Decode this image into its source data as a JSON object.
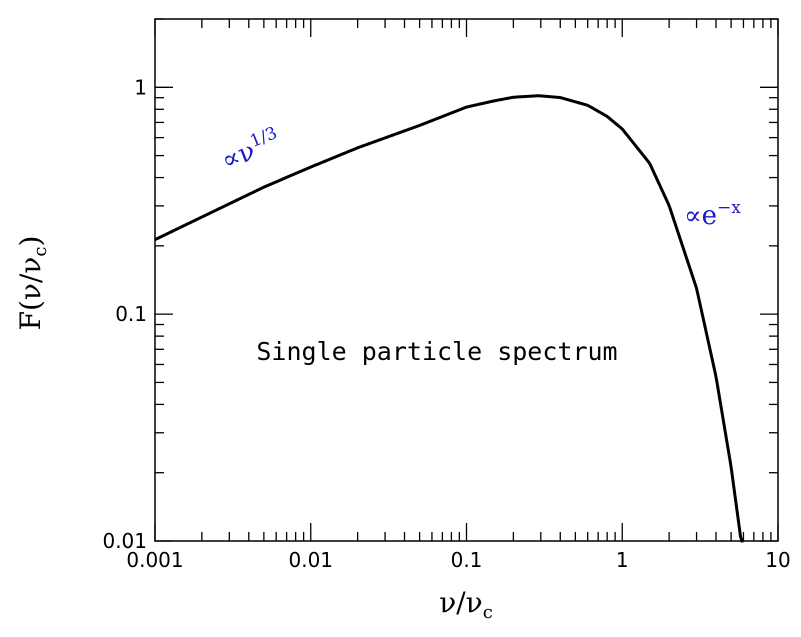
{
  "chart_data": {
    "type": "line",
    "scale": {
      "x": "log",
      "y": "log"
    },
    "xlim": [
      0.001,
      10
    ],
    "ylim": [
      0.01,
      2
    ],
    "grid": false,
    "legend": "none",
    "x_ticks": [
      {
        "value": 0.001,
        "label": "0.001"
      },
      {
        "value": 0.01,
        "label": "0.01"
      },
      {
        "value": 0.1,
        "label": "0.1"
      },
      {
        "value": 1,
        "label": "1"
      },
      {
        "value": 10,
        "label": "10"
      }
    ],
    "y_ticks": [
      {
        "value": 0.01,
        "label": "0.01"
      },
      {
        "value": 0.1,
        "label": "0.1"
      },
      {
        "value": 1,
        "label": "1"
      }
    ],
    "xlabel": {
      "base": "ν/ν",
      "sub": "c"
    },
    "ylabel": {
      "base": "F(ν/ν",
      "sub": "c",
      "close": ")"
    },
    "series": [
      {
        "x": [
          0.001,
          0.002,
          0.005,
          0.01,
          0.02,
          0.05,
          0.1,
          0.15,
          0.2,
          0.29,
          0.4,
          0.6,
          0.8,
          1.0,
          1.5,
          2.0,
          3.0,
          4.0,
          5.0,
          6.0
        ],
        "y": [
          0.213,
          0.268,
          0.363,
          0.445,
          0.541,
          0.679,
          0.818,
          0.871,
          0.904,
          0.918,
          0.901,
          0.833,
          0.744,
          0.655,
          0.462,
          0.301,
          0.13,
          0.053,
          0.0212,
          0.0084
        ],
        "color": "#000000"
      }
    ],
    "annotations": [
      {
        "id": "low",
        "prefix": "∝ν",
        "sup": "1/3",
        "color": "#1a1acc"
      },
      {
        "id": "high",
        "prefix": "∝e",
        "sup": "−x",
        "color": "#1a1acc"
      },
      {
        "id": "caption",
        "text": "Single particle spectrum",
        "color": "#000000"
      }
    ]
  }
}
